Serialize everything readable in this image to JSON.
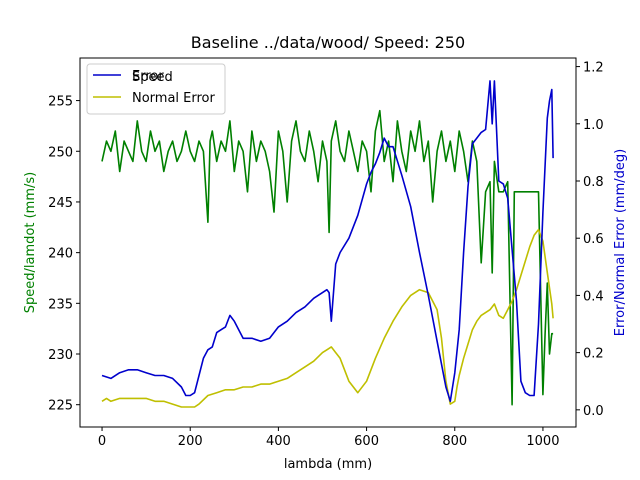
{
  "chart_data": {
    "type": "line",
    "title": "Baseline ../data/wood/ Speed: 250",
    "xlabel": "lambda (mm)",
    "ylabel_left": "Speed/lamdot (mm/s)",
    "ylabel_right": "Error/Normal Error (mm/deg)",
    "xlim": [
      -50,
      1075
    ],
    "ylim_left": [
      222.8,
      259.2
    ],
    "ylim_right": [
      -0.06,
      1.23
    ],
    "x_ticks": [
      0,
      200,
      400,
      600,
      800,
      1000
    ],
    "y_left_ticks": [
      225,
      230,
      235,
      240,
      245,
      250,
      255
    ],
    "y_right_ticks": [
      0.0,
      0.2,
      0.4,
      0.6,
      0.8,
      1.0,
      1.2
    ],
    "x_tick_labels": [
      "0",
      "200",
      "400",
      "600",
      "800",
      "1000"
    ],
    "y_left_tick_labels": [
      "225",
      "230",
      "235",
      "240",
      "245",
      "250",
      "255"
    ],
    "y_right_tick_labels": [
      "0.0",
      "0.2",
      "0.4",
      "0.6",
      "0.8",
      "1.0",
      "1.2"
    ],
    "colors": {
      "speed": "#008000",
      "error": "#0000cc",
      "normal_error": "#bfbf00",
      "left_axis": "#008000",
      "right_axis": "#0000cc"
    },
    "legend": {
      "position": "top-left",
      "entries": [
        "Error",
        "Normal Error"
      ],
      "hidden_entry": "Speed"
    },
    "series": [
      {
        "name": "Speed",
        "axis": "left",
        "x": [
          0,
          10,
          20,
          30,
          40,
          50,
          60,
          70,
          80,
          90,
          100,
          110,
          120,
          130,
          140,
          150,
          160,
          170,
          180,
          190,
          200,
          210,
          220,
          230,
          240,
          245,
          250,
          260,
          270,
          280,
          290,
          300,
          310,
          320,
          330,
          340,
          350,
          360,
          370,
          380,
          390,
          400,
          410,
          420,
          430,
          440,
          450,
          460,
          470,
          480,
          490,
          500,
          510,
          515,
          520,
          530,
          540,
          550,
          560,
          570,
          580,
          590,
          600,
          610,
          620,
          630,
          640,
          650,
          660,
          670,
          680,
          690,
          700,
          710,
          720,
          730,
          740,
          750,
          760,
          770,
          780,
          790,
          800,
          810,
          820,
          830,
          840,
          850,
          860,
          870,
          880,
          885,
          890,
          900,
          910,
          920,
          930,
          935,
          940,
          950,
          960,
          970,
          980,
          990,
          1000,
          1005,
          1010,
          1015,
          1020,
          1023
        ],
        "y": [
          249,
          251,
          250,
          252,
          248,
          251,
          250,
          249,
          253,
          250,
          249,
          252,
          250,
          251,
          248,
          250,
          251,
          249,
          250,
          252,
          250,
          249,
          251,
          250,
          243,
          251,
          252,
          249,
          251,
          250,
          253,
          248,
          251,
          250,
          246,
          252,
          249,
          251,
          250,
          248,
          244,
          252,
          250,
          245,
          251,
          253,
          250,
          249,
          252,
          250,
          247,
          251,
          249,
          242,
          251,
          253,
          250,
          249,
          252,
          250,
          248,
          251,
          250,
          246,
          252,
          254,
          249,
          251,
          247,
          253,
          250,
          248,
          252,
          250,
          253,
          249,
          251,
          245,
          250,
          252,
          249,
          251,
          248,
          252,
          250,
          247,
          251,
          249,
          239,
          246,
          247,
          238,
          249,
          246,
          246,
          247,
          225,
          246,
          246,
          246,
          246,
          246,
          246,
          246,
          226,
          232,
          237,
          230,
          232,
          232
        ]
      },
      {
        "name": "Error",
        "axis": "right",
        "x": [
          0,
          20,
          40,
          60,
          80,
          100,
          120,
          140,
          160,
          180,
          190,
          200,
          210,
          220,
          230,
          240,
          250,
          260,
          270,
          280,
          290,
          300,
          320,
          340,
          360,
          380,
          400,
          420,
          440,
          460,
          480,
          500,
          510,
          515,
          520,
          530,
          540,
          560,
          580,
          600,
          610,
          620,
          630,
          640,
          650,
          660,
          680,
          700,
          720,
          740,
          760,
          780,
          790,
          800,
          810,
          820,
          830,
          840,
          850,
          860,
          870,
          880,
          885,
          890,
          900,
          910,
          920,
          930,
          940,
          950,
          960,
          970,
          980,
          990,
          1000,
          1010,
          1015,
          1020,
          1023
        ],
        "y": [
          0.12,
          0.11,
          0.13,
          0.14,
          0.14,
          0.13,
          0.12,
          0.12,
          0.11,
          0.08,
          0.05,
          0.05,
          0.06,
          0.12,
          0.18,
          0.21,
          0.22,
          0.27,
          0.28,
          0.29,
          0.33,
          0.31,
          0.25,
          0.25,
          0.24,
          0.25,
          0.29,
          0.31,
          0.34,
          0.36,
          0.39,
          0.41,
          0.42,
          0.41,
          0.31,
          0.51,
          0.55,
          0.6,
          0.68,
          0.79,
          0.83,
          0.86,
          0.9,
          0.95,
          0.92,
          0.92,
          0.82,
          0.71,
          0.55,
          0.4,
          0.24,
          0.08,
          0.03,
          0.13,
          0.28,
          0.55,
          0.78,
          0.93,
          0.95,
          0.97,
          0.98,
          1.15,
          1.0,
          1.15,
          0.8,
          0.79,
          0.74,
          0.56,
          0.38,
          0.1,
          0.06,
          0.05,
          0.05,
          0.3,
          0.69,
          1.02,
          1.08,
          1.12,
          0.88
        ]
      },
      {
        "name": "Normal Error",
        "axis": "right",
        "x": [
          0,
          10,
          20,
          40,
          60,
          80,
          100,
          120,
          140,
          160,
          180,
          200,
          210,
          220,
          240,
          260,
          280,
          300,
          320,
          340,
          360,
          380,
          400,
          420,
          440,
          460,
          480,
          500,
          510,
          520,
          530,
          540,
          560,
          580,
          600,
          620,
          640,
          660,
          680,
          700,
          720,
          740,
          760,
          770,
          780,
          790,
          800,
          805,
          810,
          820,
          830,
          840,
          850,
          860,
          870,
          880,
          890,
          900,
          910,
          920,
          930,
          940,
          950,
          960,
          970,
          980,
          990,
          1000,
          1010,
          1020,
          1023
        ],
        "y": [
          0.03,
          0.04,
          0.03,
          0.04,
          0.04,
          0.04,
          0.04,
          0.03,
          0.03,
          0.02,
          0.01,
          0.01,
          0.01,
          0.02,
          0.05,
          0.06,
          0.07,
          0.07,
          0.08,
          0.08,
          0.09,
          0.09,
          0.1,
          0.11,
          0.13,
          0.15,
          0.17,
          0.2,
          0.21,
          0.22,
          0.2,
          0.18,
          0.1,
          0.06,
          0.1,
          0.18,
          0.25,
          0.31,
          0.36,
          0.4,
          0.42,
          0.41,
          0.35,
          0.25,
          0.1,
          0.02,
          0.03,
          0.08,
          0.12,
          0.18,
          0.23,
          0.28,
          0.31,
          0.33,
          0.34,
          0.35,
          0.37,
          0.33,
          0.32,
          0.35,
          0.38,
          0.42,
          0.47,
          0.52,
          0.57,
          0.61,
          0.63,
          0.59,
          0.48,
          0.37,
          0.32
        ]
      }
    ]
  }
}
